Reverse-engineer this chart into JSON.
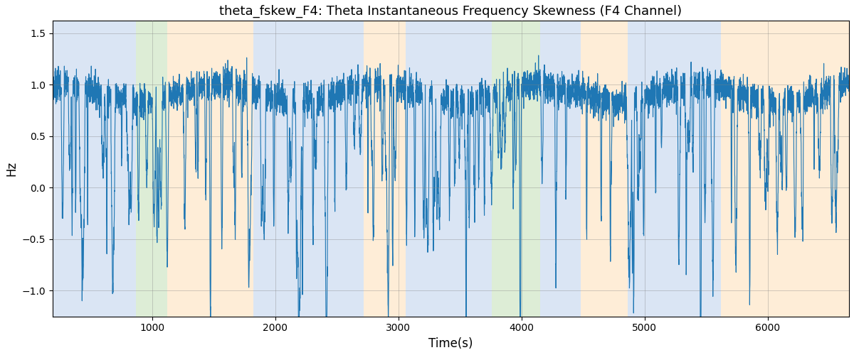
{
  "title": "theta_fskew_F4: Theta Instantaneous Frequency Skewness (F4 Channel)",
  "xlabel": "Time(s)",
  "ylabel": "Hz",
  "xlim": [
    190,
    6660
  ],
  "ylim": [
    -1.25,
    1.62
  ],
  "yticks": [
    -1.0,
    -0.5,
    0.0,
    0.5,
    1.0,
    1.5
  ],
  "xticks": [
    1000,
    2000,
    3000,
    4000,
    5000,
    6000
  ],
  "line_color": "#1f77b4",
  "line_width": 0.8,
  "background_color": "#ffffff",
  "bands": [
    {
      "xmin": 190,
      "xmax": 870,
      "color": "#aec6e8",
      "alpha": 0.45
    },
    {
      "xmin": 870,
      "xmax": 1120,
      "color": "#b5d9a5",
      "alpha": 0.45
    },
    {
      "xmin": 1120,
      "xmax": 1820,
      "color": "#fdd9a8",
      "alpha": 0.45
    },
    {
      "xmin": 1820,
      "xmax": 2720,
      "color": "#aec6e8",
      "alpha": 0.45
    },
    {
      "xmin": 2720,
      "xmax": 3060,
      "color": "#fdd9a8",
      "alpha": 0.45
    },
    {
      "xmin": 3060,
      "xmax": 3760,
      "color": "#aec6e8",
      "alpha": 0.45
    },
    {
      "xmin": 3760,
      "xmax": 4150,
      "color": "#b5d9a5",
      "alpha": 0.45
    },
    {
      "xmin": 4150,
      "xmax": 4480,
      "color": "#aec6e8",
      "alpha": 0.45
    },
    {
      "xmin": 4480,
      "xmax": 4860,
      "color": "#fdd9a8",
      "alpha": 0.45
    },
    {
      "xmin": 4860,
      "xmax": 5620,
      "color": "#aec6e8",
      "alpha": 0.45
    },
    {
      "xmin": 5620,
      "xmax": 5820,
      "color": "#fdd9a8",
      "alpha": 0.45
    },
    {
      "xmin": 5820,
      "xmax": 6660,
      "color": "#fdd9a8",
      "alpha": 0.45
    }
  ],
  "seed": 7,
  "n_points": 6500
}
